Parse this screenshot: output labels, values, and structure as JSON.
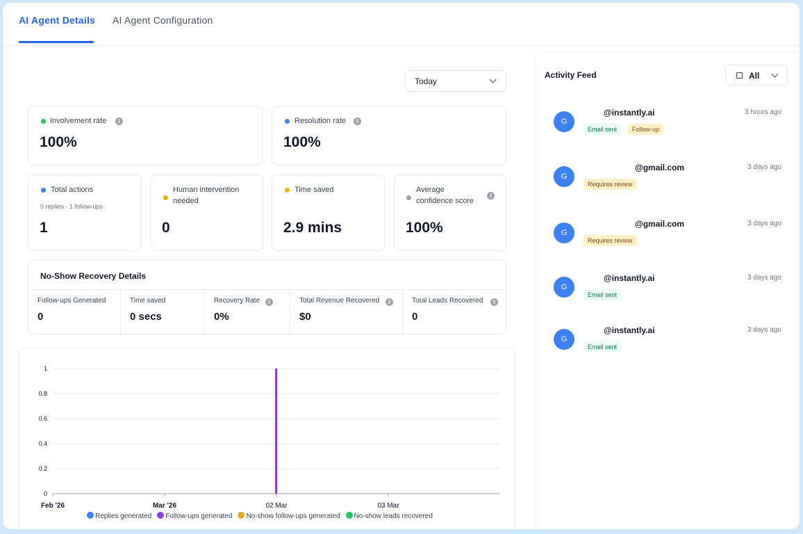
{
  "tabs": {
    "details": "AI Agent Details",
    "configuration": "AI Agent Configuration"
  },
  "period": {
    "selected": "Today"
  },
  "metrics": {
    "involvement": {
      "label": "Involvement rate",
      "value": "100%",
      "color": "#22c55e"
    },
    "resolution": {
      "label": "Resolution rate",
      "value": "100%",
      "color": "#3b82f6"
    },
    "total_actions": {
      "label": "Total actions",
      "sub": "0 replies · 1 follow-ups",
      "value": "1",
      "color": "#3b82f6"
    },
    "human_intervention": {
      "label_line1": "Human intervention",
      "label_line2": "needed",
      "value": "0",
      "color": "#eab308"
    },
    "time_saved": {
      "label": "Time saved",
      "value": "2.9 mins",
      "color": "#eab308"
    },
    "confidence": {
      "label_line1": "Average",
      "label_line2": "confidence score",
      "value": "100%",
      "color": "#9ca3af"
    }
  },
  "recovery": {
    "title": "No-Show Recovery Details",
    "columns": [
      {
        "label": "Follow-ups Generated",
        "value": "0"
      },
      {
        "label": "Time saved",
        "value": "0 secs"
      },
      {
        "label": "Recovery Rate",
        "value": "0%"
      },
      {
        "label": "Total Revenue Recovered",
        "value": "$0"
      },
      {
        "label": "Total Leads Recovered",
        "value": "0"
      }
    ]
  },
  "chart_data": {
    "type": "bar",
    "x_ticks": [
      "Feb '26",
      "Mar '26",
      "02 Mar",
      "03 Mar"
    ],
    "y_ticks": [
      "0",
      "0.2",
      "0.4",
      "0.6",
      "0.8",
      "1"
    ],
    "ylim": [
      0,
      1
    ],
    "grid": true,
    "legend_placement": "bottom",
    "series": [
      {
        "name": "Replies generated",
        "color": "#3b82f6",
        "points": []
      },
      {
        "name": "Follow-ups generated",
        "color": "#8b3fe0",
        "points": [
          {
            "x": "02 Mar",
            "y": 1
          }
        ]
      },
      {
        "name": "No-show follow-ups generated",
        "color": "#e9a822",
        "points": []
      },
      {
        "name": "No-show leads recovered",
        "color": "#22c55e",
        "points": []
      }
    ]
  },
  "feed": {
    "title": "Activity Feed",
    "filter": "All",
    "items": [
      {
        "avatar": "G",
        "email": "@instantly.ai",
        "time": "3 hours ago",
        "badges": [
          "Email sent",
          "Follow-up"
        ]
      },
      {
        "avatar": "G",
        "email": "@gmail.com",
        "time": "3 days ago",
        "badges": [
          "Requires review"
        ]
      },
      {
        "avatar": "G",
        "email": "@gmail.com",
        "time": "3 days ago",
        "badges": [
          "Requires review"
        ]
      },
      {
        "avatar": "G",
        "email": "@instantly.ai",
        "time": "3 days ago",
        "badges": [
          "Email sent"
        ]
      },
      {
        "avatar": "G",
        "email": "@instantly.ai",
        "time": "3 days ago",
        "badges": [
          "Email sent"
        ]
      }
    ]
  }
}
